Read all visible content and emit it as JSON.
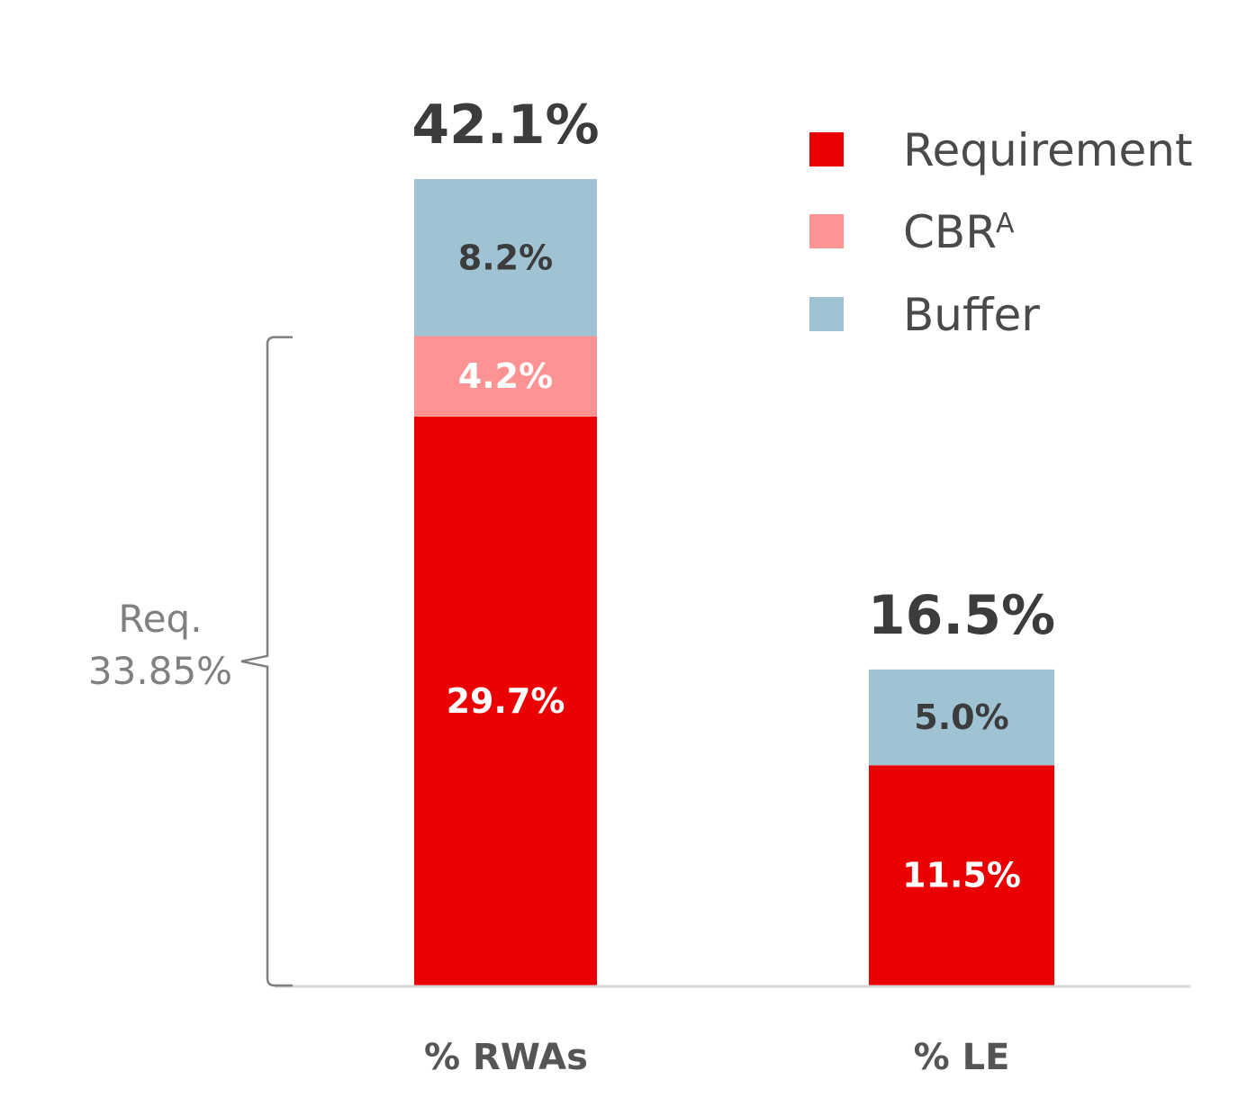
{
  "chart_data": {
    "type": "bar",
    "stacked": true,
    "categories": [
      "% RWAs",
      "% LE"
    ],
    "series": [
      {
        "name": "Requirement",
        "color": "#ea0000",
        "label_color": "#ffffff",
        "values": [
          29.7,
          11.5
        ],
        "labels": [
          "29.7%",
          "11.5%"
        ]
      },
      {
        "name": "CBR",
        "superscript": "A",
        "color": "#fe9393",
        "label_color": "#ffffff",
        "values": [
          4.2,
          null
        ],
        "labels": [
          "4.2%",
          ""
        ]
      },
      {
        "name": "Buffer",
        "color": "#9fc3d3",
        "label_color": "#3c3c3c",
        "values": [
          8.2,
          5.0
        ],
        "labels": [
          "8.2%",
          "5.0%"
        ]
      }
    ],
    "totals": [
      42.1,
      16.5
    ],
    "total_labels": [
      "42.1%",
      "16.5%"
    ],
    "bracket": {
      "line1": "Req.",
      "line2": "33.85%",
      "value": 33.85
    },
    "legend_position": "top-right",
    "grid": false
  }
}
